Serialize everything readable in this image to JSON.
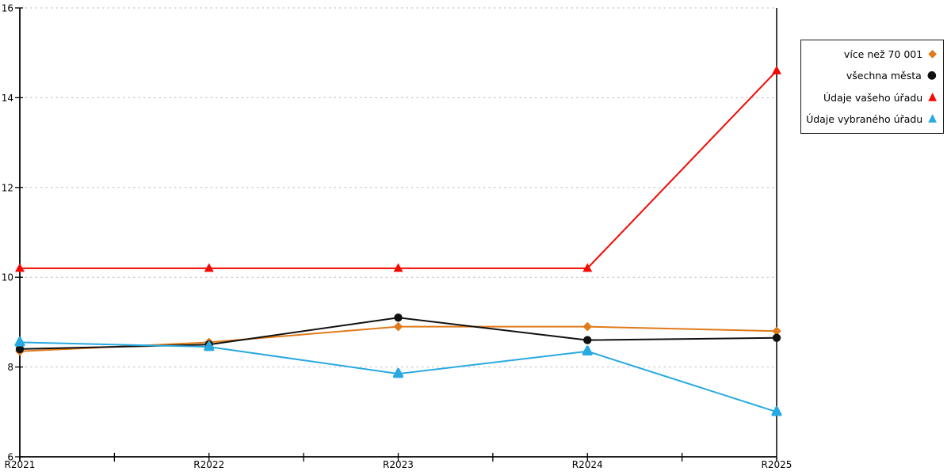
{
  "chart_data": {
    "type": "line",
    "title": "",
    "xlabel": "",
    "ylabel": "",
    "categories": [
      "R2021",
      "R2022",
      "R2023",
      "R2024",
      "R2025"
    ],
    "series": [
      {
        "name": "více než 70 001",
        "color": "#e07a1a",
        "marker": "diamond",
        "values": [
          8.35,
          8.55,
          8.9,
          8.9,
          8.8
        ]
      },
      {
        "name": "všechna města",
        "color": "#111111",
        "marker": "circle",
        "values": [
          8.4,
          8.5,
          9.1,
          8.6,
          8.65
        ]
      },
      {
        "name": "Údaje vašeho úřadu",
        "color": "#f40800",
        "marker": "triangle",
        "values": [
          10.2,
          10.2,
          10.2,
          10.2,
          14.6
        ]
      },
      {
        "name": "Údaje vybraného úřadu",
        "color": "#29a9e1",
        "marker": "triangle-rounded",
        "values": [
          8.55,
          8.45,
          7.85,
          8.35,
          7.0
        ]
      }
    ],
    "ylim": [
      6,
      16
    ],
    "yticks": [
      6,
      8,
      10,
      12,
      14,
      16
    ],
    "grid": "horizontal-dashed",
    "grid_color": "#bdbdbd",
    "axis_color": "#000000",
    "legend_position": "top-right"
  }
}
